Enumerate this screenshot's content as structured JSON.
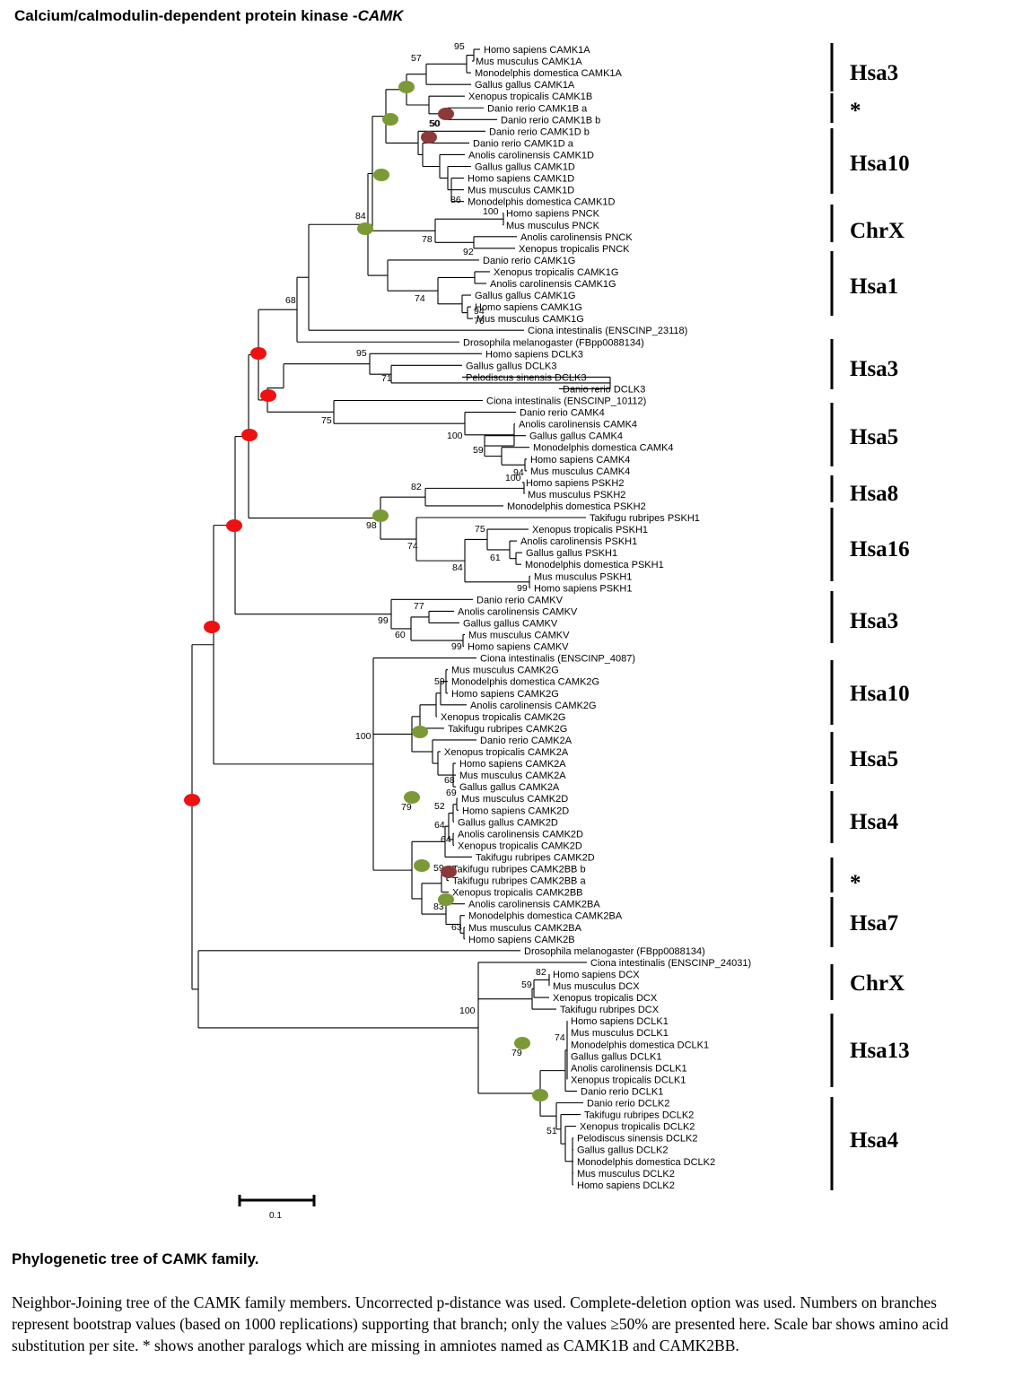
{
  "figure": {
    "title_prefix": "Calcium/calmodulin-dependent protein kinase -",
    "title_gene": "CAMK",
    "caption_title": "Phylogenetic tree of  CAMK family.",
    "caption_text": "Neighbor-Joining tree of the  CAMK  family members. Uncorrected p-distance was used. Complete-deletion option was used. Numbers on branches represent bootstrap values (based on 1000 replications) supporting that branch; only the values ≥50% are presented here. Scale bar shows amino acid substitution per site. * shows another paralogs which are missing in amniotes named as CAMK1B and CAMK2BB.",
    "scale_label": "0.1"
  },
  "leaves": [
    "Homo sapiens CAMK1A",
    "Mus musculus CAMK1A",
    "Monodelphis domestica CAMK1A",
    "Gallus gallus CAMK1A",
    "Xenopus tropicalis CAMK1B",
    "Danio rerio CAMK1B a",
    "Danio rerio CAMK1B b",
    "Danio rerio CAMK1D  b",
    "Danio rerio CAMK1D a",
    "Anolis carolinensis CAMK1D",
    "Gallus gallus CAMK1D",
    "Homo sapiens CAMK1D",
    "Mus musculus CAMK1D",
    "Monodelphis domestica CAMK1D",
    "Homo sapiens PNCK",
    "Mus musculus PNCK",
    "Anolis carolinensis PNCK",
    "Xenopus tropicalis PNCK",
    "Danio rerio CAMK1G",
    "Xenopus tropicalis CAMK1G",
    "Anolis carolinensis CAMK1G",
    "Gallus gallus CAMK1G",
    "Homo sapiens CAMK1G",
    "Mus musculus CAMK1G",
    "Ciona intestinalis (ENSCINP_23118)",
    "Drosophila melanogaster (FBpp0088134)",
    "Homo sapiens DCLK3",
    "Gallus gallus DCLK3",
    "Pelodiscus sinensis DCLK3",
    "Danio rerio DCLK3",
    "Ciona intestinalis (ENSCINP_10112)",
    "Danio rerio CAMK4",
    "Anolis carolinensis CAMK4",
    "Gallus gallus CAMK4",
    "Monodelphis domestica CAMK4",
    "Homo sapiens CAMK4",
    "Mus musculus CAMK4",
    "Homo sapiens PSKH2",
    "Mus musculus PSKH2",
    "Monodelphis domestica PSKH2",
    "Takifugu rubripes PSKH1",
    "Xenopus tropicalis PSKH1",
    "Anolis carolinensis PSKH1",
    "Gallus gallus PSKH1",
    "Monodelphis domestica PSKH1",
    "Mus musculus PSKH1",
    "Homo sapiens PSKH1",
    "Danio rerio CAMKV",
    "Anolis carolinensis CAMKV",
    "Gallus gallus CAMKV",
    "Mus musculus CAMKV",
    "Homo sapiens CAMKV",
    "Ciona intestinalis (ENSCINP_4087)",
    "Mus musculus CAMK2G",
    "Monodelphis domestica CAMK2G",
    "Homo sapiens CAMK2G",
    "Anolis carolinensis CAMK2G",
    "Xenopus tropicalis CAMK2G",
    "Takifugu rubripes CAMK2G",
    "Danio rerio CAMK2A",
    "Xenopus tropicalis CAMK2A",
    "Homo sapiens CAMK2A",
    "Mus musculus CAMK2A",
    "Gallus gallus CAMK2A",
    "Mus musculus CAMK2D",
    "Homo sapiens CAMK2D",
    "Gallus gallus CAMK2D",
    "Anolis carolinensis CAMK2D",
    "Xenopus tropicalis CAMK2D",
    "Takifugu rubripes CAMK2D",
    "Takifugu rubripes CAMK2BB b",
    "Takifugu rubripes CAMK2BB a",
    "Xenopus tropicalis CAMK2BB",
    "Anolis carolinensis CAMK2BA",
    "Monodelphis domestica CAMK2BA",
    "Mus musculus CAMK2BA",
    "Homo sapiens CAMK2B",
    "Drosophila melanogaster (FBpp0088134)",
    "Ciona intestinalis (ENSCINP_24031)",
    "Homo sapiens DCX",
    "Mus musculus DCX",
    "Xenopus tropicalis DCX",
    "Takifugu rubripes DCX",
    "Homo sapiens DCLK1",
    "Mus musculus DCLK1",
    "Monodelphis domestica DCLK1",
    "Gallus gallus DCLK1",
    "Anolis carolinensis DCLK1",
    "Xenopus tropicalis DCLK1",
    "Danio rerio DCLK1",
    "Danio rerio DCLK2",
    "Takifugu rubripes DCLK2",
    "Xenopus tropicalis DCLK2",
    "Pelodiscus sinensis DCLK2",
    "Gallus gallus DCLK2",
    "Monodelphis domestica DCLK2",
    "Mus musculus DCLK2",
    "Homo sapiens DCLK2"
  ],
  "bootstrap": [
    "95",
    "57",
    "50",
    "100",
    "86",
    "84",
    "78",
    "92",
    "74",
    "94",
    "76",
    "68",
    "95",
    "71",
    "75",
    "100",
    "59",
    "94",
    "100",
    "82",
    "98",
    "74",
    "75",
    "61",
    "84",
    "99",
    "77",
    "99",
    "60",
    "99",
    "59",
    "100",
    "68",
    "69",
    "52",
    "64",
    "64",
    "79",
    "59",
    "83",
    "63",
    "82",
    "59",
    "100",
    "74",
    "79",
    "51",
    "50"
  ],
  "chromosomes": [
    "Hsa3",
    "*",
    "Hsa10",
    "ChrX",
    "Hsa1",
    "Hsa3",
    "Hsa5",
    "Hsa8",
    "Hsa16",
    "Hsa3",
    "Hsa10",
    "Hsa5",
    "Hsa4",
    "*",
    "Hsa7",
    "ChrX",
    "Hsa13",
    "Hsa4"
  ],
  "colors": {
    "duplication_vertebrate": "#7a9a35",
    "duplication_fish": "#8b3a3a",
    "duplication_ancient": "#ee1111"
  }
}
